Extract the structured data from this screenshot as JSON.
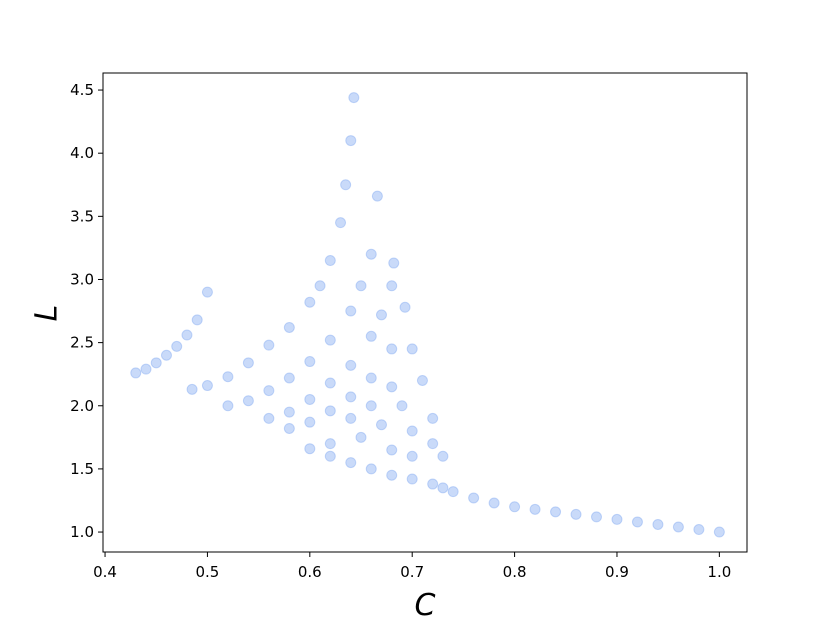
{
  "chart_data": {
    "type": "scatter",
    "xlabel": "C",
    "ylabel": "L",
    "color": "#6495ed",
    "alpha": 0.35,
    "x": [
      0.43,
      0.44,
      0.45,
      0.46,
      0.47,
      0.48,
      0.49,
      0.5,
      0.485,
      0.5,
      0.52,
      0.54,
      0.56,
      0.58,
      0.6,
      0.61,
      0.62,
      0.63,
      0.635,
      0.64,
      0.643,
      0.52,
      0.54,
      0.56,
      0.58,
      0.6,
      0.62,
      0.64,
      0.65,
      0.66,
      0.666,
      0.56,
      0.58,
      0.6,
      0.62,
      0.64,
      0.66,
      0.67,
      0.68,
      0.682,
      0.58,
      0.6,
      0.62,
      0.64,
      0.66,
      0.68,
      0.693,
      0.6,
      0.62,
      0.64,
      0.66,
      0.68,
      0.7,
      0.62,
      0.64,
      0.66,
      0.68,
      0.7,
      0.72,
      0.73,
      0.65,
      0.67,
      0.69,
      0.71,
      0.68,
      0.7,
      0.72,
      0.7,
      0.72,
      0.73,
      0.74,
      0.76,
      0.78,
      0.8,
      0.82,
      0.84,
      0.86,
      0.88,
      0.9,
      0.92,
      0.94,
      0.96,
      0.98,
      1.0
    ],
    "values": [
      2.26,
      2.29,
      2.34,
      2.4,
      2.47,
      2.56,
      2.68,
      2.9,
      2.13,
      2.16,
      2.23,
      2.34,
      2.48,
      2.62,
      2.82,
      2.95,
      3.15,
      3.45,
      3.75,
      4.1,
      4.44,
      2.0,
      2.04,
      2.12,
      2.22,
      2.35,
      2.52,
      2.75,
      2.95,
      3.2,
      3.66,
      1.9,
      1.95,
      2.05,
      2.18,
      2.32,
      2.55,
      2.72,
      2.95,
      3.13,
      1.82,
      1.87,
      1.96,
      2.07,
      2.22,
      2.45,
      2.78,
      1.66,
      1.7,
      1.9,
      2.0,
      2.15,
      2.45,
      1.6,
      1.55,
      1.5,
      1.45,
      1.42,
      1.38,
      1.35,
      1.75,
      1.85,
      2.0,
      2.2,
      1.65,
      1.8,
      1.9,
      1.6,
      1.7,
      1.6,
      1.32,
      1.27,
      1.23,
      1.2,
      1.18,
      1.16,
      1.14,
      1.12,
      1.1,
      1.08,
      1.06,
      1.04,
      1.02,
      1.0
    ],
    "xlim": [
      0.398,
      1.027
    ],
    "ylim": [
      0.842,
      4.635
    ],
    "xticks": [
      0.4,
      0.5,
      0.6,
      0.7,
      0.8,
      0.9,
      {
        "value": 1.0,
        "label": "1.0"
      }
    ],
    "yticks": [
      {
        "value": 1.0,
        "label": "1.0"
      },
      1.5,
      {
        "value": 2.0,
        "label": "2.0"
      },
      2.5,
      {
        "value": 3.0,
        "label": "3.0"
      },
      3.5,
      {
        "value": 4.0,
        "label": "4.0"
      },
      4.5
    ]
  }
}
